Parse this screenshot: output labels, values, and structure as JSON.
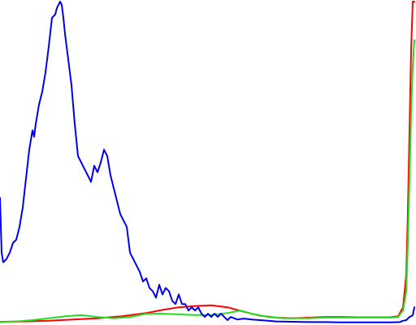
{
  "chart_data": {
    "type": "line",
    "title": "",
    "xlabel": "",
    "ylabel": "",
    "grid": false,
    "legend": "none",
    "xlim": [
      0,
      255
    ],
    "ylim": [
      0,
      1
    ],
    "series": [
      {
        "color": "#ff0000",
        "points": [
          [
            0,
            0.005
          ],
          [
            15,
            0.006
          ],
          [
            30,
            0.008
          ],
          [
            45,
            0.012
          ],
          [
            60,
            0.016
          ],
          [
            75,
            0.022
          ],
          [
            90,
            0.032
          ],
          [
            100,
            0.042
          ],
          [
            110,
            0.05
          ],
          [
            120,
            0.054
          ],
          [
            130,
            0.056
          ],
          [
            140,
            0.05
          ],
          [
            150,
            0.036
          ],
          [
            160,
            0.024
          ],
          [
            170,
            0.018
          ],
          [
            180,
            0.016
          ],
          [
            190,
            0.018
          ],
          [
            200,
            0.02
          ],
          [
            210,
            0.02
          ],
          [
            220,
            0.019
          ],
          [
            230,
            0.019
          ],
          [
            240,
            0.019
          ],
          [
            245,
            0.022
          ],
          [
            248,
            0.05
          ],
          [
            250,
            0.15
          ],
          [
            251,
            0.35
          ],
          [
            252,
            0.6
          ],
          [
            253,
            0.85
          ],
          [
            254,
            1.0
          ],
          [
            255,
            1.0
          ]
        ]
      },
      {
        "color": "#22dd22",
        "points": [
          [
            0,
            0.004
          ],
          [
            10,
            0.006
          ],
          [
            20,
            0.01
          ],
          [
            30,
            0.016
          ],
          [
            40,
            0.022
          ],
          [
            50,
            0.026
          ],
          [
            60,
            0.02
          ],
          [
            70,
            0.016
          ],
          [
            80,
            0.02
          ],
          [
            90,
            0.03
          ],
          [
            100,
            0.03
          ],
          [
            110,
            0.028
          ],
          [
            120,
            0.026
          ],
          [
            130,
            0.026
          ],
          [
            140,
            0.032
          ],
          [
            148,
            0.04
          ],
          [
            155,
            0.03
          ],
          [
            165,
            0.02
          ],
          [
            175,
            0.016
          ],
          [
            190,
            0.016
          ],
          [
            200,
            0.018
          ],
          [
            210,
            0.018
          ],
          [
            220,
            0.018
          ],
          [
            230,
            0.018
          ],
          [
            240,
            0.018
          ],
          [
            245,
            0.02
          ],
          [
            248,
            0.04
          ],
          [
            250,
            0.1
          ],
          [
            251,
            0.25
          ],
          [
            252,
            0.45
          ],
          [
            253,
            0.65
          ],
          [
            254,
            0.8
          ],
          [
            255,
            0.88
          ]
        ]
      },
      {
        "color": "#0000ee",
        "points": [
          [
            0,
            0.39
          ],
          [
            1,
            0.22
          ],
          [
            2,
            0.19
          ],
          [
            4,
            0.2
          ],
          [
            6,
            0.22
          ],
          [
            8,
            0.25
          ],
          [
            10,
            0.26
          ],
          [
            12,
            0.3
          ],
          [
            14,
            0.36
          ],
          [
            16,
            0.45
          ],
          [
            18,
            0.54
          ],
          [
            20,
            0.6
          ],
          [
            21,
            0.58
          ],
          [
            22,
            0.62
          ],
          [
            24,
            0.68
          ],
          [
            26,
            0.72
          ],
          [
            28,
            0.78
          ],
          [
            30,
            0.86
          ],
          [
            32,
            0.95
          ],
          [
            34,
            0.96
          ],
          [
            35,
            0.98
          ],
          [
            37,
            1.0
          ],
          [
            38,
            0.99
          ],
          [
            39,
            0.95
          ],
          [
            40,
            0.9
          ],
          [
            42,
            0.82
          ],
          [
            44,
            0.74
          ],
          [
            46,
            0.62
          ],
          [
            48,
            0.52
          ],
          [
            50,
            0.5
          ],
          [
            52,
            0.48
          ],
          [
            54,
            0.46
          ],
          [
            56,
            0.44
          ],
          [
            58,
            0.49
          ],
          [
            60,
            0.47
          ],
          [
            62,
            0.5
          ],
          [
            64,
            0.54
          ],
          [
            66,
            0.52
          ],
          [
            68,
            0.46
          ],
          [
            70,
            0.42
          ],
          [
            72,
            0.38
          ],
          [
            74,
            0.34
          ],
          [
            76,
            0.32
          ],
          [
            78,
            0.3
          ],
          [
            80,
            0.22
          ],
          [
            82,
            0.2
          ],
          [
            84,
            0.18
          ],
          [
            86,
            0.16
          ],
          [
            88,
            0.13
          ],
          [
            90,
            0.14
          ],
          [
            92,
            0.11
          ],
          [
            94,
            0.1
          ],
          [
            96,
            0.08
          ],
          [
            98,
            0.12
          ],
          [
            100,
            0.09
          ],
          [
            102,
            0.11
          ],
          [
            104,
            0.1
          ],
          [
            106,
            0.07
          ],
          [
            108,
            0.06
          ],
          [
            110,
            0.09
          ],
          [
            112,
            0.06
          ],
          [
            114,
            0.06
          ],
          [
            116,
            0.04
          ],
          [
            118,
            0.05
          ],
          [
            120,
            0.04
          ],
          [
            122,
            0.05
          ],
          [
            124,
            0.03
          ],
          [
            126,
            0.02
          ],
          [
            128,
            0.03
          ],
          [
            130,
            0.02
          ],
          [
            132,
            0.03
          ],
          [
            134,
            0.02
          ],
          [
            136,
            0.03
          ],
          [
            138,
            0.02
          ],
          [
            140,
            0.01
          ],
          [
            142,
            0.02
          ],
          [
            146,
            0.012
          ],
          [
            150,
            0.015
          ],
          [
            155,
            0.012
          ],
          [
            160,
            0.01
          ],
          [
            170,
            0.006
          ],
          [
            180,
            0.005
          ],
          [
            190,
            0.004
          ],
          [
            200,
            0.004
          ],
          [
            210,
            0.003
          ],
          [
            220,
            0.003
          ],
          [
            230,
            0.003
          ],
          [
            240,
            0.003
          ],
          [
            246,
            0.004
          ],
          [
            248,
            0.008
          ],
          [
            250,
            0.01
          ],
          [
            252,
            0.02
          ],
          [
            254,
            0.025
          ],
          [
            255,
            0.05
          ]
        ]
      }
    ]
  }
}
